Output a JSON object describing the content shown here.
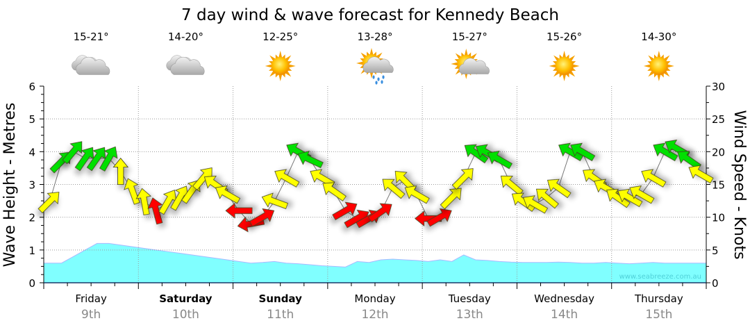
{
  "chart_data": {
    "type": "line",
    "title": "7 day wind & wave forecast for Kennedy Beach",
    "ylabel": "Wave Height - Metres",
    "y2label": "Wind Speed - Knots",
    "ylim": [
      0,
      6
    ],
    "y2lim": [
      0,
      30
    ],
    "yticks": [
      "0",
      "1",
      "2",
      "3",
      "4",
      "5",
      "6"
    ],
    "y2ticks": [
      "0",
      "5",
      "10",
      "15",
      "20",
      "25",
      "30"
    ],
    "grid": true,
    "watermark": "www.seabreeze.com.au",
    "days": [
      {
        "day": "Friday",
        "date": "9th",
        "bold": false,
        "temp": "15-21°",
        "weather": "cloudy"
      },
      {
        "day": "Saturday",
        "date": "10th",
        "bold": true,
        "temp": "14-20°",
        "weather": "cloudy"
      },
      {
        "day": "Sunday",
        "date": "11th",
        "bold": true,
        "temp": "12-25°",
        "weather": "sunny"
      },
      {
        "day": "Monday",
        "date": "12th",
        "bold": false,
        "temp": "13-28°",
        "weather": "showers"
      },
      {
        "day": "Tuesday",
        "date": "13th",
        "bold": false,
        "temp": "15-27°",
        "weather": "partly-cloudy"
      },
      {
        "day": "Wednesday",
        "date": "14th",
        "bold": false,
        "temp": "15-26°",
        "weather": "sunny"
      },
      {
        "day": "Thursday",
        "date": "15th",
        "bold": false,
        "temp": "14-30°",
        "weather": "sunny"
      }
    ],
    "wave_height_m": [
      0.6,
      0.6,
      0.8,
      1.0,
      1.2,
      1.2,
      1.15,
      1.1,
      1.05,
      1.0,
      0.95,
      0.9,
      0.85,
      0.8,
      0.75,
      0.7,
      0.65,
      0.6,
      0.62,
      0.65,
      0.6,
      0.58,
      0.55,
      0.52,
      0.5,
      0.48,
      0.65,
      0.62,
      0.7,
      0.72,
      0.7,
      0.68,
      0.65,
      0.7,
      0.65,
      0.85,
      0.7,
      0.68,
      0.65,
      0.63,
      0.62,
      0.62,
      0.62,
      0.63,
      0.62,
      0.6,
      0.6,
      0.62,
      0.6,
      0.58,
      0.6,
      0.62,
      0.6,
      0.6,
      0.6,
      0.6
    ],
    "wind_speed_kt": [
      12.4,
      18.5,
      20,
      19,
      19,
      19,
      17,
      14,
      12.4,
      11,
      12.4,
      13,
      14,
      16,
      15,
      13.5,
      11,
      9,
      10,
      12.4,
      16,
      20,
      18.8,
      16,
      14,
      11,
      9.8,
      9.8,
      10.8,
      14.5,
      15.6,
      13.5,
      9.8,
      10,
      13,
      16,
      19.8,
      19.8,
      18.8,
      15,
      12.4,
      12,
      13,
      14.5,
      20,
      20,
      16,
      14.5,
      13,
      13,
      13.5,
      16,
      20,
      20.5,
      18.8,
      16.6
    ],
    "wind_direction_deg": [
      45,
      45,
      40,
      35,
      35,
      30,
      0,
      -20,
      -10,
      -15,
      30,
      30,
      35,
      40,
      -55,
      -60,
      -90,
      -100,
      60,
      -70,
      -60,
      -60,
      -65,
      -60,
      -55,
      60,
      60,
      60,
      55,
      -50,
      -45,
      -60,
      -90,
      60,
      45,
      45,
      -55,
      -60,
      -60,
      -50,
      -55,
      -60,
      -50,
      -55,
      -60,
      -60,
      -55,
      -60,
      -55,
      -60,
      -60,
      -60,
      -60,
      -60,
      -55,
      -60
    ],
    "wind_colors": {
      "light": "#ff0000",
      "moderate": "#ffff00",
      "strong": "#00e000"
    },
    "wave_color": "#80ffff"
  }
}
